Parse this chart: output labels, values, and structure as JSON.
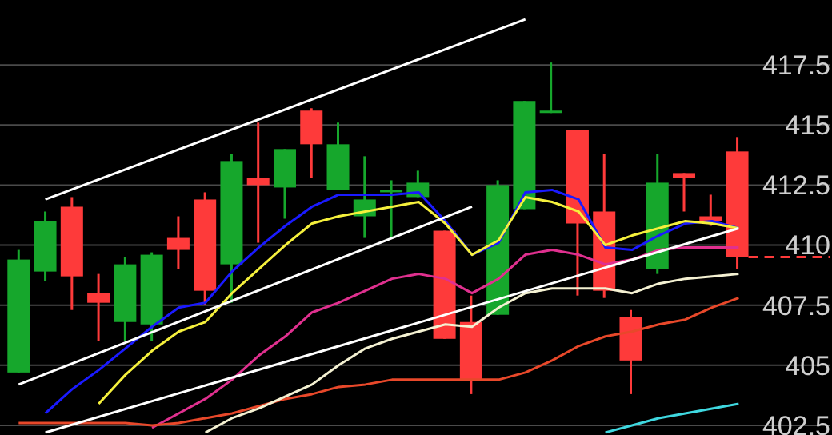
{
  "chart_data": [
    {
      "type": "candlestick",
      "categories": [
        null,
        null,
        null,
        null,
        null,
        null,
        null,
        null,
        null,
        null,
        null,
        null,
        null,
        null,
        null,
        null,
        null,
        null,
        null,
        null,
        null,
        null,
        null,
        null,
        null,
        null,
        null,
        null
      ],
      "ohlc": [
        [
          404.7,
          409.8,
          404.7,
          409.4
        ],
        [
          408.9,
          411.4,
          408.5,
          411.0
        ],
        [
          411.6,
          412.0,
          407.3,
          408.7
        ],
        [
          408.0,
          408.8,
          406.0,
          407.6
        ],
        [
          406.8,
          409.5,
          406.0,
          409.2
        ],
        [
          406.7,
          409.7,
          406.0,
          409.6
        ],
        [
          410.3,
          411.2,
          409.0,
          409.8
        ],
        [
          411.9,
          412.2,
          407.5,
          408.1
        ],
        [
          409.2,
          413.8,
          407.6,
          413.5
        ],
        [
          412.8,
          415.1,
          410.1,
          412.5
        ],
        [
          412.4,
          414.0,
          411.1,
          414.0
        ],
        [
          415.6,
          415.7,
          412.8,
          414.2
        ],
        [
          412.3,
          415.1,
          412.3,
          414.2
        ],
        [
          411.2,
          413.7,
          410.3,
          411.9
        ],
        [
          412.2,
          412.7,
          410.3,
          412.3
        ],
        [
          412.0,
          413.1,
          412.0,
          412.6
        ],
        [
          410.6,
          410.6,
          406.1,
          406.1
        ],
        [
          406.8,
          407.9,
          403.8,
          404.4
        ],
        [
          407.1,
          412.7,
          407.1,
          412.5
        ],
        [
          411.5,
          416.0,
          411.5,
          416.0
        ],
        [
          415.5,
          417.6,
          415.5,
          415.6
        ],
        [
          414.8,
          414.8,
          407.9,
          410.9
        ],
        [
          411.4,
          413.8,
          407.8,
          408.1
        ],
        [
          407.0,
          407.3,
          403.8,
          405.2
        ],
        [
          409.0,
          413.8,
          408.8,
          412.6
        ],
        [
          413.0,
          413.0,
          411.4,
          412.8
        ],
        [
          411.2,
          412.1,
          410.8,
          411.0
        ],
        [
          413.9,
          414.5,
          409.0,
          409.5
        ]
      ],
      "colors": [
        "#16a72c",
        "#16a72c",
        "#fe3a3a",
        "#fe3a3a",
        "#16a72c",
        "#16a72c",
        "#fe3a3a",
        "#fe3a3a",
        "#16a72c",
        "#fe3a3a",
        "#16a72c",
        "#fe3a3a",
        "#16a72c",
        "#16a72c",
        "#16a72c",
        "#16a72c",
        "#fe3a3a",
        "#fe3a3a",
        "#16a72c",
        "#16a72c",
        "#16a72c",
        "#fe3a3a",
        "#fe3a3a",
        "#fe3a3a",
        "#16a72c",
        "#fe3a3a",
        "#fe3a3a",
        "#fe3a3a"
      ],
      "ylim": [
        402.1,
        420.2
      ],
      "yticks": [
        402.5,
        405,
        407.5,
        410,
        412.5,
        415,
        417.5
      ],
      "grid": "y",
      "tick_labels": "y"
    },
    {
      "type": "line",
      "categories": [
        null,
        null,
        null,
        null,
        null,
        null,
        null,
        null,
        null,
        null,
        null,
        null,
        null,
        null,
        null,
        null,
        null,
        null,
        null,
        null,
        null,
        null,
        null,
        null,
        null,
        null,
        null,
        null
      ],
      "series": [
        {
          "color": "#1a1aff",
          "values": [
            null,
            403.0,
            404.0,
            404.8,
            405.7,
            406.6,
            407.4,
            407.6,
            408.9,
            409.9,
            410.8,
            411.6,
            412.1,
            412.1,
            412.1,
            412.2,
            411.0,
            409.6,
            410.1,
            412.2,
            412.3,
            411.9,
            409.9,
            409.8,
            410.4,
            410.9,
            411.0,
            410.7
          ]
        },
        {
          "color": "#f5f03c",
          "values": [
            null,
            null,
            null,
            403.4,
            404.6,
            405.6,
            406.4,
            406.8,
            408.0,
            409.0,
            410.0,
            410.9,
            411.2,
            411.4,
            411.6,
            411.8,
            410.9,
            409.6,
            410.2,
            412.0,
            411.8,
            411.4,
            410.0,
            410.4,
            410.7,
            411.0,
            410.9,
            410.7
          ]
        },
        {
          "color": "#e0308f",
          "values": [
            null,
            null,
            null,
            null,
            null,
            402.4,
            403.0,
            403.6,
            404.4,
            405.4,
            406.2,
            407.2,
            407.6,
            408.1,
            408.6,
            408.8,
            408.6,
            408.0,
            408.6,
            409.6,
            409.8,
            409.6,
            409.2,
            409.4,
            409.8,
            409.9,
            409.9,
            409.9
          ]
        },
        {
          "color": "#e8482a",
          "values": [
            402.6,
            402.6,
            402.6,
            402.6,
            402.6,
            402.5,
            402.6,
            402.8,
            403.0,
            403.3,
            403.6,
            403.8,
            404.1,
            404.2,
            404.4,
            404.4,
            404.4,
            404.4,
            404.4,
            404.7,
            405.2,
            405.8,
            406.2,
            406.4,
            406.7,
            406.9,
            407.4,
            407.8
          ]
        },
        {
          "color": "#f4f1d2",
          "values": [
            null,
            null,
            null,
            null,
            null,
            null,
            null,
            402.2,
            402.8,
            403.2,
            403.7,
            404.2,
            405.0,
            405.7,
            406.1,
            406.4,
            406.7,
            406.6,
            407.4,
            408.0,
            408.2,
            408.2,
            408.2,
            408.0,
            408.4,
            408.6,
            408.7,
            408.8
          ]
        },
        {
          "color": "#3fd8e0",
          "values": [
            null,
            null,
            null,
            null,
            null,
            null,
            null,
            null,
            null,
            null,
            null,
            null,
            null,
            null,
            null,
            null,
            null,
            null,
            null,
            null,
            null,
            null,
            402.2,
            402.5,
            402.8,
            403.0,
            403.2,
            403.4
          ]
        },
        {
          "color": "#ffffff",
          "values": [
            null,
            411.9,
            null,
            null,
            null,
            null,
            null,
            null,
            null,
            null,
            null,
            null,
            null,
            null,
            null,
            null,
            null,
            null,
            null,
            419.4,
            null,
            null,
            null,
            null,
            null,
            null,
            null,
            null
          ]
        },
        {
          "color": "#ffffff",
          "values": [
            404.2,
            null,
            null,
            null,
            null,
            null,
            null,
            null,
            null,
            null,
            null,
            null,
            null,
            null,
            null,
            null,
            null,
            411.6,
            null,
            null,
            null,
            null,
            null,
            null,
            null,
            null,
            null,
            null
          ]
        },
        {
          "color": "#ffffff",
          "values": [
            null,
            402.2,
            null,
            null,
            null,
            null,
            null,
            null,
            null,
            null,
            null,
            null,
            null,
            null,
            null,
            null,
            null,
            null,
            null,
            null,
            null,
            null,
            null,
            null,
            null,
            null,
            null,
            410.7
          ]
        }
      ],
      "ylim": [
        402.1,
        420.2
      ],
      "tick_labels": false,
      "marker": "none",
      "line_style": "solid"
    }
  ]
}
